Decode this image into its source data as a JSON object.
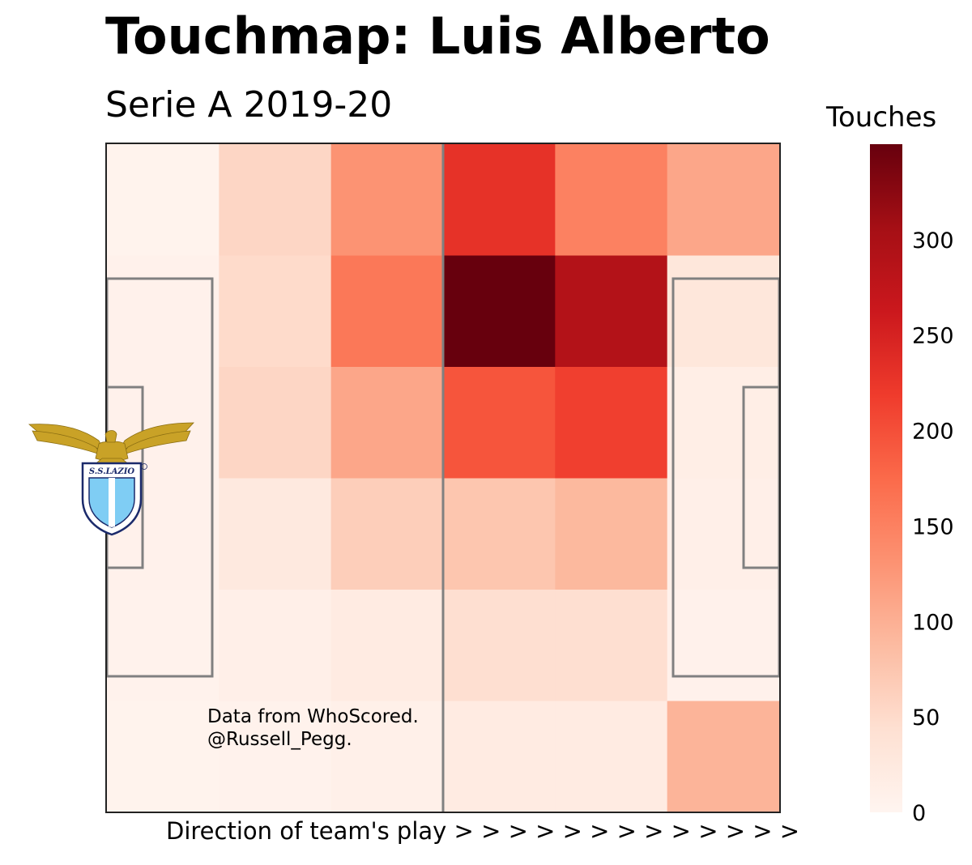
{
  "title": "Touchmap: Luis Alberto",
  "subtitle": "Serie A 2019-20",
  "colorbar_label": "Touches",
  "xlabel": "Direction of team's play > > > > > > > > > > > > >",
  "credit": {
    "line1": "Data from WhoScored.",
    "line2": "@Russell_Pegg."
  },
  "logo_text": "S.S.LAZIO",
  "chart_data": {
    "type": "heatmap",
    "title": "Touchmap: Luis Alberto",
    "subtitle": "Serie A 2019-20",
    "xlabel": "Direction of team's play > > > > > > > > > > > > >",
    "colorbar": {
      "label": "Touches",
      "range": [
        0,
        350
      ],
      "ticks": [
        0,
        50,
        100,
        150,
        200,
        250,
        300
      ],
      "colormap": "Reds"
    },
    "grid_columns": 6,
    "grid_rows": 6,
    "values": [
      [
        5,
        55,
        130,
        230,
        150,
        110
      ],
      [
        8,
        50,
        160,
        350,
        290,
        30
      ],
      [
        8,
        55,
        110,
        195,
        215,
        15
      ],
      [
        8,
        25,
        65,
        75,
        90,
        12
      ],
      [
        6,
        12,
        20,
        45,
        45,
        8
      ],
      [
        5,
        6,
        10,
        20,
        20,
        95
      ]
    ]
  }
}
